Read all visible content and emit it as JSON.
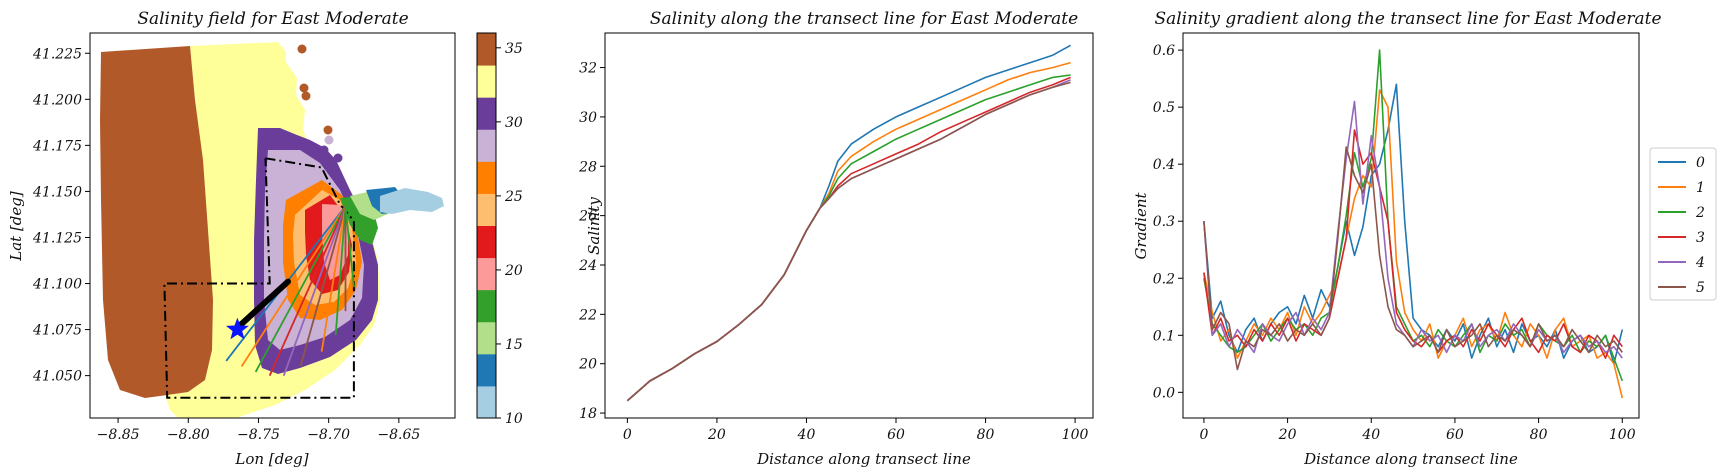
{
  "chart_data": [
    {
      "type": "map",
      "title": "Salinity field for East Moderate",
      "xlabel": "Lon [deg]",
      "ylabel": "Lat [deg]",
      "xlim": [
        -8.87,
        -8.61
      ],
      "ylim": [
        41.027,
        41.236
      ],
      "xticks": [
        "−8.85",
        "−8.80",
        "−8.75",
        "−8.70",
        "−8.65"
      ],
      "xtick_values": [
        -8.85,
        -8.8,
        -8.75,
        -8.7,
        -8.65
      ],
      "yticks": [
        "41.050",
        "41.075",
        "41.100",
        "41.125",
        "41.150",
        "41.175",
        "41.200",
        "41.225"
      ],
      "ytick_values": [
        41.05,
        41.075,
        41.1,
        41.125,
        41.15,
        41.175,
        41.2,
        41.225
      ],
      "colorbar": {
        "vmin": 10,
        "vmax": 36,
        "bounds": [
          10,
          12.6,
          15.2,
          17.8,
          20.4,
          23,
          25.6,
          28.2,
          30.8,
          33.4,
          36
        ],
        "colors": [
          "#a6cee3",
          "#1f78b4",
          "#b2df8a",
          "#33a02c",
          "#fb9a99",
          "#e31a1c",
          "#fdbf6f",
          "#ff7f00",
          "#cab2d6",
          "#6a3d9a",
          "#ffff99",
          "#b15928"
        ],
        "ticks": [
          "10",
          "15",
          "20",
          "25",
          "30",
          "35"
        ],
        "tick_values": [
          10,
          15,
          20,
          25,
          30,
          35
        ]
      },
      "marker": {
        "lon": -8.765,
        "lat": 41.075,
        "shape": "star",
        "color": "#0a14ff"
      },
      "transect_origin": {
        "lon": -8.688,
        "lat": 41.142
      },
      "transect_ends": [
        {
          "lon": -8.773,
          "lat": 41.058,
          "color": "#1f77b4"
        },
        {
          "lon": -8.762,
          "lat": 41.055,
          "color": "#ff7f0e"
        },
        {
          "lon": -8.752,
          "lat": 41.052,
          "color": "#2ca02c"
        },
        {
          "lon": -8.742,
          "lat": 41.05,
          "color": "#d62728"
        },
        {
          "lon": -8.732,
          "lat": 41.05,
          "color": "#9467bd"
        },
        {
          "lon": -8.72,
          "lat": 41.055,
          "color": "#8c564b"
        },
        {
          "lon": -8.705,
          "lat": 41.063,
          "color": "#ff7f0e"
        },
        {
          "lon": -8.695,
          "lat": 41.072,
          "color": "#2ca02c"
        },
        {
          "lon": -8.688,
          "lat": 41.085,
          "color": "#8c564b"
        },
        {
          "lon": -8.682,
          "lat": 41.098,
          "color": "#2ca02c"
        }
      ],
      "thick_track": {
        "from": {
          "lon": -8.765,
          "lat": 41.076
        },
        "to": {
          "lon": -8.729,
          "lat": 41.101
        },
        "color": "#000000"
      },
      "boundary_box": [
        {
          "lon": -8.745,
          "lat": 41.168
        },
        {
          "lon": -8.705,
          "lat": 41.163
        },
        {
          "lon": -8.692,
          "lat": 41.143
        },
        {
          "lon": -8.682,
          "lat": 41.134
        },
        {
          "lon": -8.682,
          "lat": 41.038
        },
        {
          "lon": -8.815,
          "lat": 41.038
        },
        {
          "lon": -8.817,
          "lat": 41.1
        },
        {
          "lon": -8.742,
          "lat": 41.1
        },
        {
          "lon": -8.745,
          "lat": 41.168
        }
      ]
    },
    {
      "type": "line",
      "title": "Salinity along the transect line for East Moderate",
      "xlabel": "Distance along transect line",
      "ylabel": "Salinity",
      "xlim": [
        -5,
        104
      ],
      "ylim": [
        17.8,
        33.4
      ],
      "xticks": [
        0,
        20,
        40,
        60,
        80,
        100
      ],
      "yticks": [
        18,
        20,
        22,
        24,
        26,
        28,
        30,
        32
      ],
      "x": [
        0,
        5,
        10,
        15,
        20,
        25,
        30,
        35,
        40,
        43,
        45,
        47,
        50,
        55,
        60,
        65,
        70,
        75,
        80,
        85,
        90,
        95,
        99
      ],
      "series": [
        {
          "name": "0",
          "color": "#1f77b4",
          "values": [
            18.5,
            19.3,
            19.8,
            20.4,
            20.9,
            21.6,
            22.4,
            23.6,
            25.4,
            26.3,
            27.2,
            28.2,
            28.9,
            29.5,
            30.0,
            30.4,
            30.8,
            31.2,
            31.6,
            31.9,
            32.2,
            32.5,
            32.9
          ]
        },
        {
          "name": "1",
          "color": "#ff7f0e",
          "values": [
            18.5,
            19.3,
            19.8,
            20.4,
            20.9,
            21.6,
            22.4,
            23.6,
            25.4,
            26.3,
            26.9,
            27.8,
            28.4,
            29.0,
            29.5,
            29.9,
            30.3,
            30.7,
            31.1,
            31.5,
            31.8,
            32.0,
            32.2
          ]
        },
        {
          "name": "2",
          "color": "#2ca02c",
          "values": [
            18.5,
            19.3,
            19.8,
            20.4,
            20.9,
            21.6,
            22.4,
            23.6,
            25.4,
            26.3,
            26.8,
            27.5,
            28.1,
            28.6,
            29.1,
            29.5,
            29.9,
            30.3,
            30.7,
            31.0,
            31.3,
            31.6,
            31.7
          ]
        },
        {
          "name": "3",
          "color": "#d62728",
          "values": [
            18.5,
            19.3,
            19.8,
            20.4,
            20.9,
            21.6,
            22.4,
            23.6,
            25.4,
            26.3,
            26.7,
            27.2,
            27.7,
            28.1,
            28.5,
            28.9,
            29.4,
            29.8,
            30.2,
            30.6,
            31.0,
            31.3,
            31.6
          ]
        },
        {
          "name": "4",
          "color": "#9467bd",
          "values": [
            18.5,
            19.3,
            19.8,
            20.4,
            20.9,
            21.6,
            22.4,
            23.6,
            25.4,
            26.3,
            26.7,
            27.1,
            27.5,
            27.9,
            28.3,
            28.7,
            29.1,
            29.6,
            30.1,
            30.5,
            30.9,
            31.2,
            31.5
          ]
        },
        {
          "name": "5",
          "color": "#8c564b",
          "values": [
            18.5,
            19.3,
            19.8,
            20.4,
            20.9,
            21.6,
            22.4,
            23.6,
            25.4,
            26.3,
            26.7,
            27.1,
            27.5,
            27.9,
            28.3,
            28.7,
            29.1,
            29.6,
            30.1,
            30.5,
            30.9,
            31.2,
            31.4
          ]
        }
      ]
    },
    {
      "type": "line",
      "title": "Salinity gradient along the transect line for East Moderate",
      "xlabel": "Distance along transect line",
      "ylabel": "Gradient",
      "xlim": [
        -5,
        104
      ],
      "ylim": [
        -0.045,
        0.63
      ],
      "xticks": [
        0,
        20,
        40,
        60,
        80,
        100
      ],
      "yticks": [
        "0.0",
        "0.1",
        "0.2",
        "0.3",
        "0.4",
        "0.5",
        "0.6"
      ],
      "ytick_values": [
        0,
        0.1,
        0.2,
        0.3,
        0.4,
        0.5,
        0.6
      ],
      "x": [
        0,
        2,
        4,
        6,
        8,
        10,
        12,
        14,
        16,
        18,
        20,
        22,
        24,
        26,
        28,
        30,
        32,
        34,
        36,
        38,
        40,
        42,
        44,
        46,
        48,
        50,
        52,
        54,
        56,
        58,
        60,
        62,
        64,
        66,
        68,
        70,
        72,
        74,
        76,
        78,
        80,
        82,
        84,
        86,
        88,
        90,
        92,
        94,
        96,
        98,
        100
      ],
      "series": [
        {
          "name": "0",
          "color": "#1f77b4",
          "values": [
            0.3,
            0.13,
            0.16,
            0.1,
            0.07,
            0.11,
            0.13,
            0.09,
            0.12,
            0.14,
            0.15,
            0.12,
            0.17,
            0.13,
            0.18,
            0.15,
            0.22,
            0.3,
            0.24,
            0.29,
            0.38,
            0.4,
            0.46,
            0.54,
            0.3,
            0.13,
            0.11,
            0.1,
            0.08,
            0.11,
            0.09,
            0.12,
            0.06,
            0.1,
            0.13,
            0.08,
            0.11,
            0.07,
            0.12,
            0.09,
            0.1,
            0.08,
            0.11,
            0.06,
            0.09,
            0.1,
            0.07,
            0.08,
            0.1,
            0.05,
            0.11
          ]
        },
        {
          "name": "1",
          "color": "#ff7f0e",
          "values": [
            0.21,
            0.14,
            0.09,
            0.11,
            0.06,
            0.09,
            0.12,
            0.1,
            0.13,
            0.11,
            0.14,
            0.1,
            0.15,
            0.12,
            0.14,
            0.17,
            0.2,
            0.27,
            0.34,
            0.38,
            0.36,
            0.53,
            0.5,
            0.23,
            0.14,
            0.11,
            0.09,
            0.12,
            0.06,
            0.09,
            0.1,
            0.13,
            0.08,
            0.11,
            0.12,
            0.09,
            0.14,
            0.1,
            0.08,
            0.12,
            0.1,
            0.06,
            0.11,
            0.13,
            0.08,
            0.09,
            0.1,
            0.06,
            0.07,
            0.05,
            -0.01
          ]
        },
        {
          "name": "2",
          "color": "#2ca02c",
          "values": [
            0.2,
            0.12,
            0.1,
            0.08,
            0.07,
            0.08,
            0.1,
            0.12,
            0.09,
            0.11,
            0.13,
            0.11,
            0.12,
            0.1,
            0.13,
            0.14,
            0.22,
            0.31,
            0.42,
            0.36,
            0.41,
            0.6,
            0.3,
            0.15,
            0.12,
            0.09,
            0.1,
            0.08,
            0.11,
            0.09,
            0.08,
            0.1,
            0.12,
            0.07,
            0.1,
            0.09,
            0.12,
            0.1,
            0.11,
            0.08,
            0.12,
            0.1,
            0.09,
            0.08,
            0.1,
            0.07,
            0.09,
            0.08,
            0.1,
            0.06,
            0.02
          ]
        },
        {
          "name": "3",
          "color": "#d62728",
          "values": [
            0.21,
            0.1,
            0.13,
            0.09,
            0.1,
            0.08,
            0.11,
            0.09,
            0.12,
            0.1,
            0.13,
            0.09,
            0.12,
            0.11,
            0.1,
            0.13,
            0.2,
            0.27,
            0.46,
            0.4,
            0.42,
            0.36,
            0.3,
            0.14,
            0.11,
            0.09,
            0.08,
            0.1,
            0.07,
            0.09,
            0.1,
            0.08,
            0.11,
            0.09,
            0.12,
            0.1,
            0.08,
            0.11,
            0.13,
            0.09,
            0.07,
            0.1,
            0.09,
            0.12,
            0.08,
            0.07,
            0.1,
            0.09,
            0.06,
            0.1,
            0.08
          ]
        },
        {
          "name": "4",
          "color": "#9467bd",
          "values": [
            0.3,
            0.1,
            0.12,
            0.08,
            0.11,
            0.09,
            0.07,
            0.12,
            0.1,
            0.09,
            0.12,
            0.14,
            0.1,
            0.13,
            0.11,
            0.14,
            0.28,
            0.41,
            0.51,
            0.33,
            0.45,
            0.36,
            0.2,
            0.12,
            0.1,
            0.08,
            0.11,
            0.09,
            0.1,
            0.07,
            0.1,
            0.09,
            0.12,
            0.08,
            0.1,
            0.11,
            0.09,
            0.12,
            0.1,
            0.08,
            0.11,
            0.09,
            0.1,
            0.07,
            0.09,
            0.1,
            0.08,
            0.09,
            0.07,
            0.08,
            0.06
          ]
        },
        {
          "name": "5",
          "color": "#8c564b",
          "values": [
            0.3,
            0.11,
            0.14,
            0.12,
            0.04,
            0.09,
            0.08,
            0.11,
            0.1,
            0.12,
            0.09,
            0.11,
            0.1,
            0.12,
            0.1,
            0.13,
            0.27,
            0.43,
            0.38,
            0.35,
            0.4,
            0.24,
            0.15,
            0.11,
            0.1,
            0.08,
            0.09,
            0.1,
            0.07,
            0.11,
            0.08,
            0.09,
            0.1,
            0.12,
            0.08,
            0.1,
            0.09,
            0.11,
            0.1,
            0.08,
            0.12,
            0.09,
            0.1,
            0.08,
            0.11,
            0.09,
            0.07,
            0.1,
            0.08,
            0.09,
            0.07
          ]
        }
      ],
      "legend": {
        "placement": "outside-right",
        "entries": [
          "0",
          "1",
          "2",
          "3",
          "4",
          "5"
        ]
      }
    }
  ]
}
